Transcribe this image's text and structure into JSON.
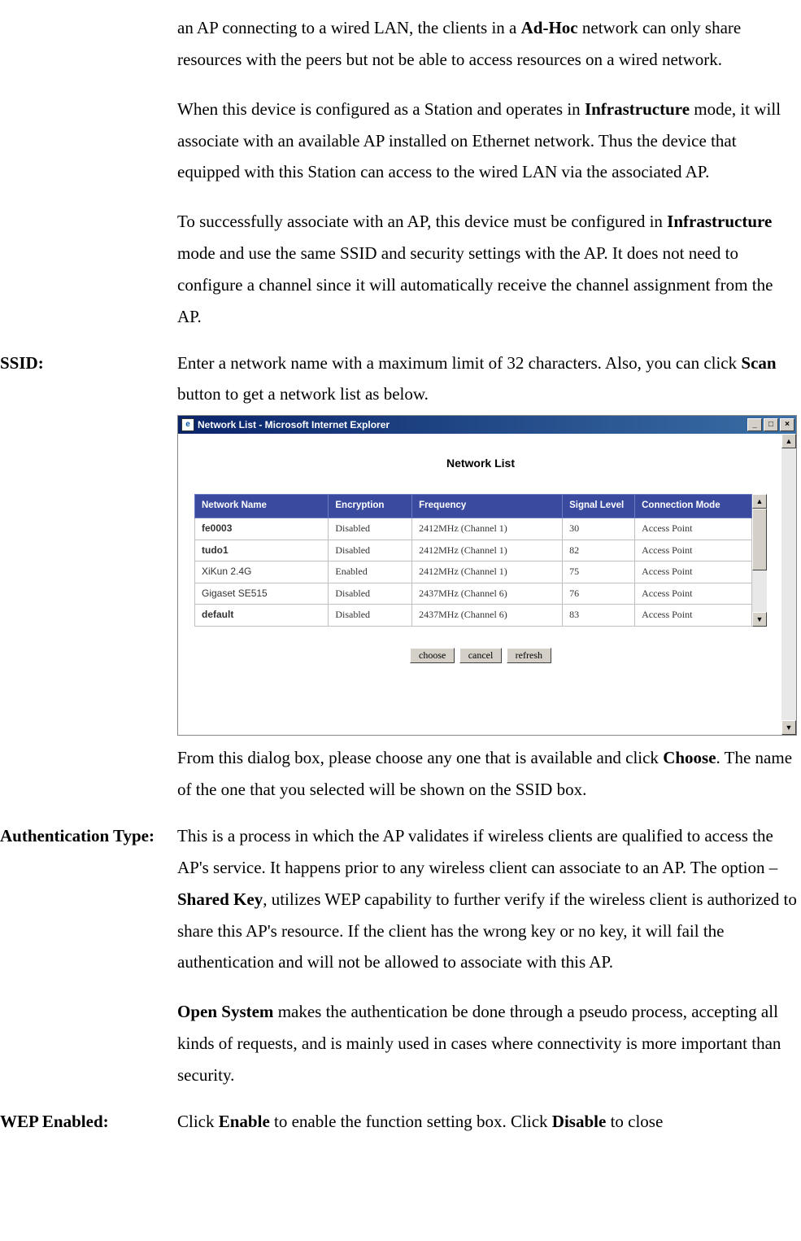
{
  "intro": {
    "p1_prefix": "an AP connecting to a wired LAN, the clients in a ",
    "p1_bold": "Ad-Hoc",
    "p1_suffix": " network can only share resources with the peers but not be able to access resources on a wired network.",
    "p2_prefix": "When this device is configured as a Station and operates in ",
    "p2_bold": "Infrastructure",
    "p2_suffix": " mode, it will associate with an available AP installed on Ethernet network. Thus the device that equipped with this Station can access to the wired LAN via the associated AP.",
    "p3_prefix": "To successfully associate with an AP, this device must be configured in ",
    "p3_bold": "Infrastructure",
    "p3_suffix": " mode and use the same SSID and security settings with the AP. It does not need to configure a channel since it will automatically receive the channel assignment from the AP."
  },
  "ssid": {
    "label": "SSID:",
    "p1_prefix": "Enter a network name with a maximum limit of 32 characters. Also, you can click ",
    "p1_bold": "Scan",
    "p1_suffix": " button to get a network list as below.",
    "p2_prefix": "From this dialog box, please choose any one that is available and click ",
    "p2_bold": "Choose",
    "p2_suffix": ". The name of the one that you selected will be shown on the SSID box."
  },
  "dialog": {
    "window_title": "Network List - Microsoft Internet Explorer",
    "heading": "Network List",
    "columns": [
      "Network Name",
      "Encryption",
      "Frequency",
      "Signal Level",
      "Connection Mode"
    ],
    "rows": [
      {
        "name": "fe0003",
        "enc": "Disabled",
        "freq": "2412MHz (Channel 1)",
        "sig": "30",
        "mode": "Access Point",
        "bold": true
      },
      {
        "name": "tudo1",
        "enc": "Disabled",
        "freq": "2412MHz (Channel 1)",
        "sig": "82",
        "mode": "Access Point",
        "bold": true
      },
      {
        "name": "XiKun 2.4G",
        "enc": "Enabled",
        "freq": "2412MHz (Channel 1)",
        "sig": "75",
        "mode": "Access Point",
        "bold": false
      },
      {
        "name": "Gigaset SE515",
        "enc": "Disabled",
        "freq": "2437MHz (Channel 6)",
        "sig": "76",
        "mode": "Access Point",
        "bold": false
      },
      {
        "name": "default",
        "enc": "Disabled",
        "freq": "2437MHz (Channel 6)",
        "sig": "83",
        "mode": "Access Point",
        "bold": true
      }
    ],
    "buttons": {
      "choose": "choose",
      "cancel": "cancel",
      "refresh": "refresh"
    },
    "colors": {
      "titlebar_start": "#0a246a",
      "titlebar_end": "#3a6ea5",
      "header_bg": "#3a4a9f",
      "header_border": "#6a7ac0",
      "cell_border": "#bfbfbf",
      "button_face": "#d4d0c8"
    }
  },
  "auth": {
    "label": "Authentication Type:",
    "p1_a": "This is a process in which the AP validates if wireless clients are qualified to access the AP's service. It happens prior to any wireless client can associate to an AP. The option – ",
    "p1_bold": "Shared Key",
    "p1_b": ", utilizes WEP capability to further verify if the wireless client is authorized to share this AP's resource. If the client has the wrong key or no key, it will fail the authentication and will not be allowed to associate with this AP.",
    "p2_bold": "Open System",
    "p2_suffix": " makes the authentication be done through a pseudo process, accepting all kinds of requests, and is mainly used in cases where connectivity is more important than security."
  },
  "wep": {
    "label": "WEP Enabled:",
    "p1_a": "Click ",
    "p1_bold1": "Enable",
    "p1_b": " to enable the function setting box. Click ",
    "p1_bold2": "Disable",
    "p1_c": " to close"
  }
}
